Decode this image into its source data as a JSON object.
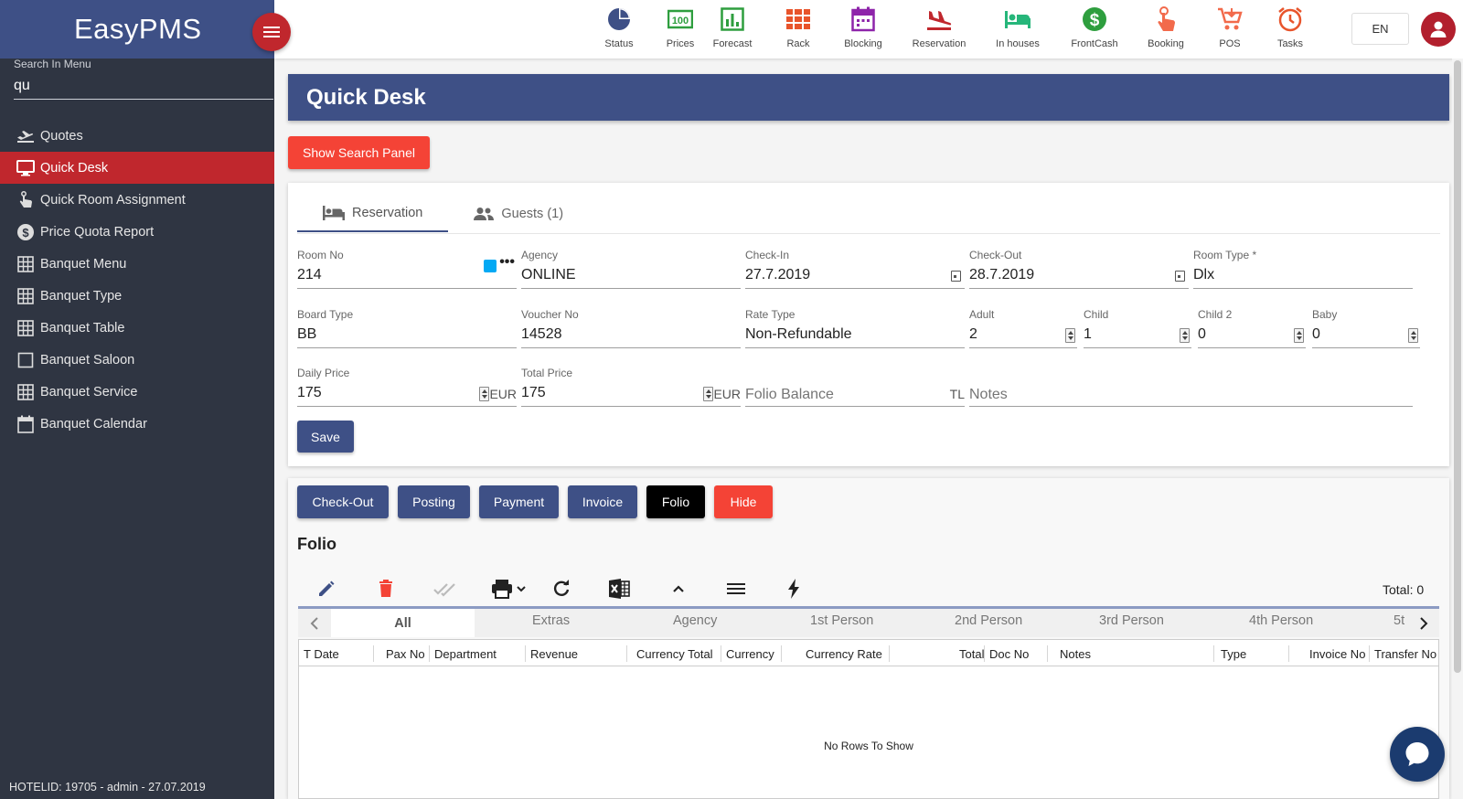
{
  "sidebar": {
    "brand": "EasyPMS",
    "search_label": "Search In Menu",
    "search_value": "qu",
    "items": [
      {
        "label": "Quotes",
        "icon": "plane-departure-icon"
      },
      {
        "label": "Quick Desk",
        "icon": "monitor-icon",
        "active": true
      },
      {
        "label": "Quick Room Assignment",
        "icon": "hand-pointer-icon"
      },
      {
        "label": "Price Quota Report",
        "icon": "dollar-circle-icon"
      },
      {
        "label": "Banquet Menu",
        "icon": "grid-icon"
      },
      {
        "label": "Banquet Type",
        "icon": "grid-icon"
      },
      {
        "label": "Banquet Table",
        "icon": "grid-icon"
      },
      {
        "label": "Banquet Saloon",
        "icon": "square-icon"
      },
      {
        "label": "Banquet Service",
        "icon": "grid-icon"
      },
      {
        "label": "Banquet Calendar",
        "icon": "calendar-icon"
      }
    ],
    "footer": "HOTELID: 19705 - admin - 27.07.2019"
  },
  "topbar": {
    "icons": [
      {
        "label": "Status",
        "icon": "pie-chart-icon",
        "color": "#3e5086"
      },
      {
        "label": "Prices",
        "icon": "money-icon",
        "color": "#2e9e3e"
      },
      {
        "label": "Forecast",
        "icon": "bar-chart-icon",
        "color": "#2e9e3e"
      },
      {
        "label": "Rack",
        "icon": "rack-grid-icon",
        "color": "#e8542b"
      },
      {
        "label": "Blocking",
        "icon": "calendar-block-icon",
        "color": "#8e24aa"
      },
      {
        "label": "Reservation",
        "icon": "plane-landing-icon",
        "color": "#c0272d"
      },
      {
        "label": "In houses",
        "icon": "bed-icon",
        "color": "#26b67a"
      },
      {
        "label": "FrontCash",
        "icon": "dollar-icon",
        "color": "#2e9e3e"
      },
      {
        "label": "Booking",
        "icon": "touch-icon",
        "color": "#f26a4b"
      },
      {
        "label": "POS",
        "icon": "cart-icon",
        "color": "#f26a4b"
      },
      {
        "label": "Tasks",
        "icon": "alarm-icon",
        "color": "#e8542b"
      }
    ],
    "language": "EN"
  },
  "page": {
    "title": "Quick Desk",
    "show_search_label": "Show Search Panel"
  },
  "reservation_tabs": {
    "reservation": "Reservation",
    "guests": "Guests (1)"
  },
  "form": {
    "room_no": {
      "label": "Room No",
      "value": "214"
    },
    "agency": {
      "label": "Agency",
      "value": "ONLINE"
    },
    "check_in": {
      "label": "Check-In",
      "value": "27.7.2019"
    },
    "check_out": {
      "label": "Check-Out",
      "value": "28.7.2019"
    },
    "room_type": {
      "label": "Room Type *",
      "value": "Dlx"
    },
    "board_type": {
      "label": "Board Type",
      "value": "BB"
    },
    "voucher_no": {
      "label": "Voucher No",
      "value": "14528"
    },
    "rate_type": {
      "label": "Rate Type",
      "value": "Non-Refundable"
    },
    "adult": {
      "label": "Adult",
      "value": "2"
    },
    "child": {
      "label": "Child",
      "value": "1"
    },
    "child2": {
      "label": "Child 2",
      "value": "0"
    },
    "baby": {
      "label": "Baby",
      "value": "0"
    },
    "daily_price": {
      "label": "Daily Price",
      "value": "175",
      "currency": "EUR"
    },
    "total_price": {
      "label": "Total Price",
      "value": "175",
      "currency": "EUR"
    },
    "folio_balance": {
      "placeholder": "Folio Balance",
      "currency": "TL"
    },
    "notes": {
      "placeholder": "Notes"
    },
    "save_label": "Save"
  },
  "actions": {
    "checkout": "Check-Out",
    "posting": "Posting",
    "payment": "Payment",
    "invoice": "Invoice",
    "folio": "Folio",
    "hide": "Hide"
  },
  "folio": {
    "title": "Folio",
    "total": "Total: 0",
    "subtabs": [
      "All",
      "Extras",
      "Agency",
      "1st Person",
      "2nd Person",
      "3rd Person",
      "4th Person",
      "5t"
    ],
    "columns": [
      "T Date",
      "Pax No",
      "Department",
      "Revenue",
      "Currency Total",
      "Currency",
      "Currency Rate",
      "Total",
      "Doc No",
      "Notes",
      "Type",
      "Invoice No",
      "Transfer No"
    ],
    "empty": "No Rows To Show"
  }
}
